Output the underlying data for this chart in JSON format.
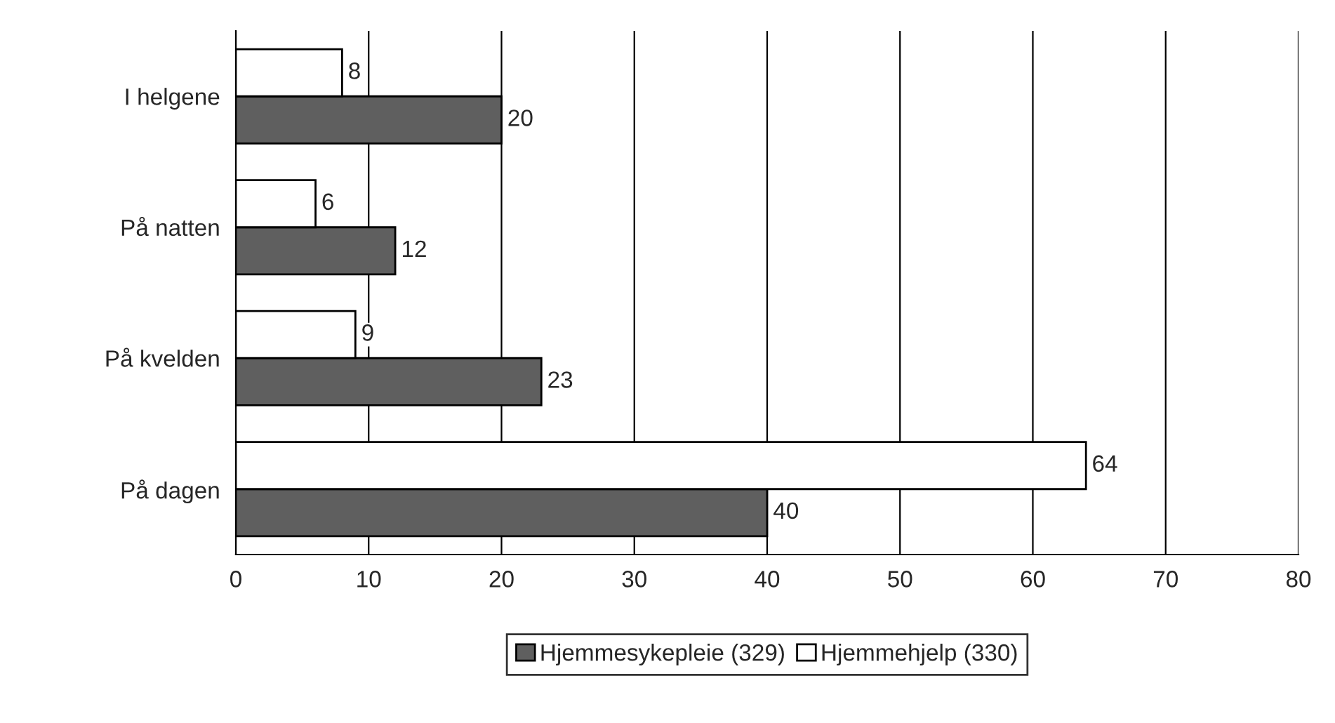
{
  "chart_data": {
    "type": "bar",
    "orientation": "horizontal",
    "categories": [
      "I helgene",
      "På natten",
      "På kvelden",
      "På dagen"
    ],
    "series": [
      {
        "name": "Hjemmesykepleie (329)",
        "color": "#5f5f5f",
        "values": [
          20,
          12,
          23,
          40
        ]
      },
      {
        "name": "Hjemmehjelp (330)",
        "color": "#ffffff",
        "values": [
          8,
          6,
          9,
          64
        ]
      }
    ],
    "xlim": [
      0,
      80
    ],
    "xticks": [
      0,
      10,
      20,
      30,
      40,
      50,
      60,
      70,
      80
    ],
    "grid": "x",
    "legend": "bottom",
    "data_labels": true
  }
}
